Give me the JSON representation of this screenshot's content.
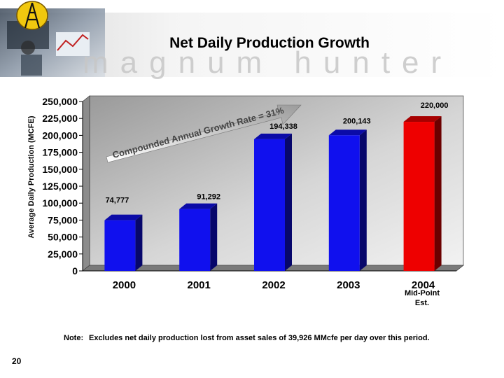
{
  "title": "Net Daily Production Growth",
  "brand_watermark": "magnum hunter",
  "page_number": "20",
  "note": {
    "label": "Note:",
    "text": "Excludes net daily production lost from asset sales of 39,926 MMcfe per day over this period."
  },
  "annotation": {
    "cagr_text": "Compounded Annual Growth Rate = 31%"
  },
  "colors": {
    "bar_historical": "#1010ee",
    "bar_estimate": "#ee0000",
    "chart_background": "#ffffff",
    "plot_wall": "#c8c8c8"
  },
  "chart_data": {
    "type": "bar",
    "categories": [
      "2000",
      "2001",
      "2002",
      "2003",
      "2004"
    ],
    "category_notes": [
      "",
      "",
      "",
      "",
      "Mid-Point Est."
    ],
    "values": [
      74777,
      91292,
      194338,
      200143,
      220000
    ],
    "value_labels": [
      "74,777",
      "91,292",
      "194,338",
      "200,143",
      "220,000"
    ],
    "ylabel": "Average Daily Production (MCFE)",
    "ylim": [
      0,
      250000
    ],
    "yticks": [
      0,
      25000,
      50000,
      75000,
      100000,
      125000,
      150000,
      175000,
      200000,
      225000,
      250000
    ],
    "ytick_labels": [
      "0",
      "25,000",
      "50,000",
      "75,000",
      "100,000",
      "125,000",
      "150,000",
      "175,000",
      "200,000",
      "225,000",
      "250,000"
    ],
    "style": "3d",
    "grid": false,
    "legend": "none"
  }
}
